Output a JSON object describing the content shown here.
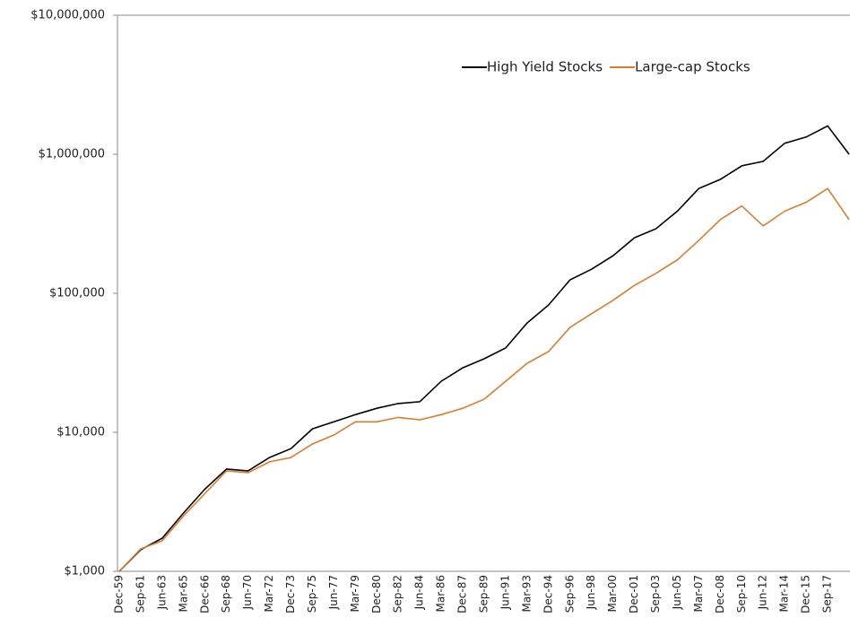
{
  "chart_data": {
    "type": "line",
    "log_scale": true,
    "legend": "top-right",
    "categories": [
      "Dec-59",
      "Sep-61",
      "Jun-63",
      "Mar-65",
      "Dec-66",
      "Sep-68",
      "Jun-70",
      "Mar-72",
      "Dec-73",
      "Sep-75",
      "Jun-77",
      "Mar-79",
      "Dec-80",
      "Sep-82",
      "Jun-84",
      "Mar-86",
      "Dec-87",
      "Sep-89",
      "Jun-91",
      "Mar-93",
      "Dec-94",
      "Sep-96",
      "Jun-98",
      "Mar-00",
      "Dec-01",
      "Sep-03",
      "Jun-05",
      "Mar-07",
      "Dec-08",
      "Sep-10",
      "Jun-12",
      "Mar-14",
      "Dec-15",
      "Sep-17",
      null
    ],
    "series": [
      {
        "name": "High Yield Stocks",
        "color": "#000000",
        "values": [
          1000,
          1430,
          1730,
          2630,
          3920,
          5440,
          5280,
          6590,
          7630,
          10600,
          11900,
          13400,
          14900,
          16100,
          16600,
          23300,
          29100,
          33800,
          40400,
          61200,
          82300,
          125000,
          149000,
          186000,
          251000,
          291000,
          390000,
          567000,
          660000,
          825000,
          889000,
          1200000,
          1330000,
          1600000,
          1000000
        ]
      },
      {
        "name": "Large-cap Stocks",
        "color": "#e07b2c",
        "values": [
          1000,
          1450,
          1660,
          2510,
          3640,
          5280,
          5120,
          6130,
          6590,
          8240,
          9560,
          11900,
          11900,
          12800,
          12300,
          13400,
          14900,
          17300,
          23300,
          31400,
          38100,
          56900,
          71300,
          88900,
          114000,
          139000,
          174000,
          240000,
          339000,
          425000,
          305000,
          390000,
          452000,
          567000,
          339000
        ]
      }
    ],
    "ylim": [
      1000,
      10000000
    ],
    "yticks": [
      {
        "value": 1000,
        "label": "$1,000"
      },
      {
        "value": 10000,
        "label": "$10,000"
      },
      {
        "value": 100000,
        "label": "$100,000"
      },
      {
        "value": 1000000,
        "label": "$1,000,000"
      },
      {
        "value": 10000000,
        "label": "$10,000,000"
      }
    ]
  }
}
